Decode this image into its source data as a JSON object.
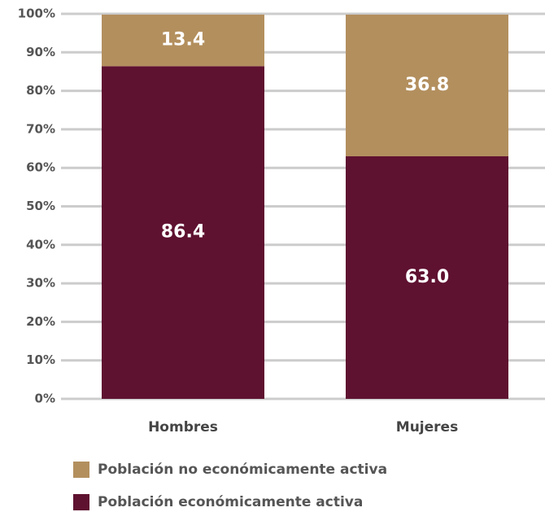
{
  "chart_data": {
    "type": "stacked_bar",
    "categories": [
      "Hombres",
      "Mujeres"
    ],
    "series": [
      {
        "name": "Población económicamente activa",
        "color": "#5f1130",
        "values": [
          86.4,
          63.0
        ],
        "value_labels": [
          "86.4",
          "63.0"
        ]
      },
      {
        "name": "Población no económicamente activa",
        "color": "#b38f5e",
        "values": [
          13.4,
          36.8
        ],
        "value_labels": [
          "13.4",
          "36.8"
        ]
      }
    ],
    "ylim": [
      0,
      100
    ],
    "yticks": [
      {
        "value": 0,
        "label": "0%"
      },
      {
        "value": 10,
        "label": "10%"
      },
      {
        "value": 20,
        "label": "20%"
      },
      {
        "value": 30,
        "label": "30%"
      },
      {
        "value": 40,
        "label": "40%"
      },
      {
        "value": 50,
        "label": "50%"
      },
      {
        "value": 60,
        "label": "60%"
      },
      {
        "value": 70,
        "label": "70%"
      },
      {
        "value": 80,
        "label": "80%"
      },
      {
        "value": 90,
        "label": "90%"
      },
      {
        "value": 100,
        "label": "100%"
      }
    ],
    "grid": true
  }
}
